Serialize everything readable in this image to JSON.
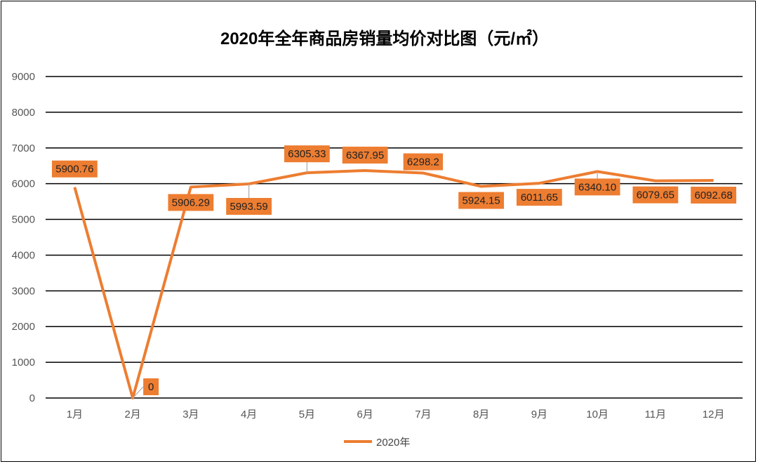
{
  "chart_data": {
    "type": "line",
    "title": "2020年全年商品房销量均价对比图（元/㎡）",
    "categories": [
      "1月",
      "2月",
      "3月",
      "4月",
      "5月",
      "6月",
      "7月",
      "8月",
      "9月",
      "10月",
      "11月",
      "12月"
    ],
    "series": [
      {
        "name": "2020年",
        "color": "#ED7D31",
        "values": [
          5900.76,
          0,
          5906.29,
          5993.59,
          6305.33,
          6367.95,
          6298.2,
          5924.15,
          6011.65,
          6340.1,
          6079.65,
          6092.68
        ],
        "labels": [
          "5900.76",
          "0",
          "5906.29",
          "5993.59",
          "6305.33",
          "6367.95",
          "6298.2",
          "5924.15",
          "6011.65",
          "6340.10",
          "6079.65",
          "6092.68"
        ]
      }
    ],
    "ylim": [
      0,
      9000
    ],
    "yticks": [
      0,
      1000,
      2000,
      3000,
      4000,
      5000,
      6000,
      7000,
      8000,
      9000
    ],
    "grid": true,
    "legend_position": "bottom",
    "label_color": "#ED7D31"
  }
}
